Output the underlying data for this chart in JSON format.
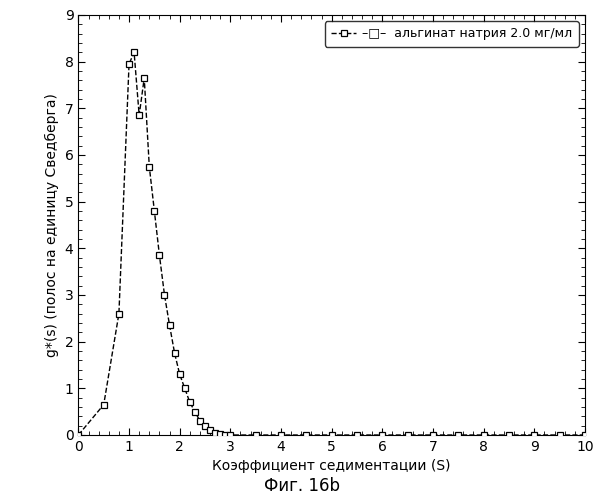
{
  "x": [
    0.0,
    0.5,
    0.8,
    1.0,
    1.1,
    1.2,
    1.3,
    1.4,
    1.5,
    1.6,
    1.7,
    1.8,
    1.9,
    2.0,
    2.1,
    2.2,
    2.3,
    2.4,
    2.5,
    2.6,
    2.7,
    2.8,
    2.9,
    3.0,
    3.5,
    4.0,
    4.5,
    5.0,
    5.5,
    6.0,
    6.5,
    7.0,
    7.5,
    8.0,
    8.5,
    9.0,
    9.5,
    10.0
  ],
  "y": [
    0.0,
    0.65,
    2.6,
    7.95,
    8.2,
    6.85,
    7.65,
    5.75,
    4.8,
    3.85,
    3.0,
    2.35,
    1.75,
    1.3,
    1.0,
    0.7,
    0.5,
    0.3,
    0.2,
    0.1,
    0.05,
    0.02,
    0.01,
    0.0,
    0.0,
    0.0,
    0.0,
    0.0,
    0.0,
    0.0,
    0.0,
    0.0,
    0.0,
    0.0,
    0.0,
    0.0,
    0.0,
    0.0
  ],
  "xlim": [
    0,
    10
  ],
  "ylim": [
    0,
    9
  ],
  "xticks": [
    0,
    1,
    2,
    3,
    4,
    5,
    6,
    7,
    8,
    9,
    10
  ],
  "yticks": [
    0,
    1,
    2,
    3,
    4,
    5,
    6,
    7,
    8,
    9
  ],
  "xlabel": "Коэффициент седиментации (S)",
  "ylabel": "g*(s) (полос на единицу Сведберга)",
  "legend_label": "–□–  альгинат натрия 2.0 мг/мл",
  "caption": "Фиг. 16b",
  "line_color": "#000000",
  "bg_color": "#ffffff",
  "figure_width": 6.03,
  "figure_height": 5.0,
  "dpi": 100
}
